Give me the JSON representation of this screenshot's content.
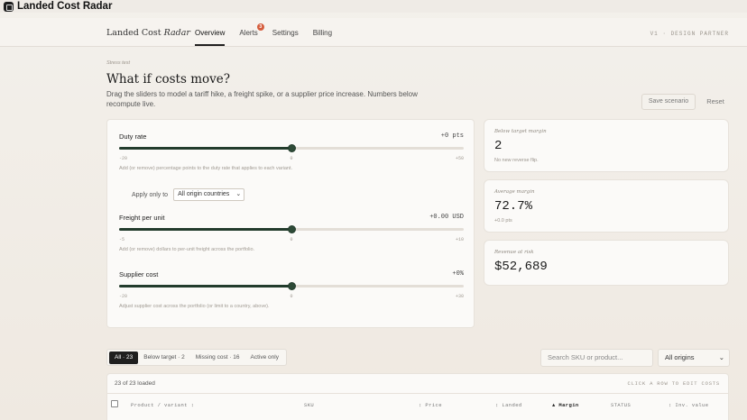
{
  "window": {
    "title": "Landed Cost Radar"
  },
  "header": {
    "brand_main": "Landed Cost",
    "brand_italic": "Radar",
    "tabs": [
      {
        "label": "Overview",
        "active": true
      },
      {
        "label": "Alerts",
        "badge": "3"
      },
      {
        "label": "Settings"
      },
      {
        "label": "Billing"
      }
    ],
    "right_text": "V1 · DESIGN PARTNER"
  },
  "intro": {
    "eyebrow": "Stress test",
    "title": "What if costs move?",
    "description": "Drag the sliders to model a tariff hike, a freight spike, or a supplier price increase. Numbers below recompute live."
  },
  "actions": {
    "save_label": "Save scenario",
    "reset_label": "Reset"
  },
  "sliders": {
    "duty": {
      "label": "Duty rate",
      "value": "+0 pts",
      "position": 0.5,
      "min": "-20",
      "mid": "0",
      "max": "+50",
      "help": "Add (or remove) percentage points to the duty rate that applies to each variant."
    },
    "apply": {
      "label": "Apply only to",
      "selected": "All origin countries"
    },
    "freight": {
      "label": "Freight per unit",
      "value": "+0.00 USD",
      "position": 0.5,
      "min": "-5",
      "mid": "0",
      "max": "+10",
      "help": "Add (or remove) dollars to per-unit freight across the portfolio."
    },
    "supplier": {
      "label": "Supplier cost",
      "value": "+0%",
      "position": 0.5,
      "min": "-20",
      "mid": "0",
      "max": "+30",
      "help": "Adjust supplier cost across the portfolio (or limit to a country, above)."
    }
  },
  "stats": {
    "below_target": {
      "label": "Below target margin",
      "value": "2",
      "sub": "No new reverse flip."
    },
    "avg_margin": {
      "label": "Average margin",
      "value": "72.7%",
      "sub": "+0.0 pts"
    },
    "revenue_risk": {
      "label": "Revenue at risk",
      "value": "$52,689"
    }
  },
  "filters": {
    "chips": [
      {
        "label": "All · 23",
        "active": true
      },
      {
        "label": "Below target · 2"
      },
      {
        "label": "Missing cost · 16"
      },
      {
        "label": "Active only"
      }
    ],
    "search_placeholder": "Search SKU or product...",
    "origin_select": "All origins"
  },
  "table": {
    "loaded": "23 of 23 loaded",
    "hint": "CLICK A ROW TO EDIT COSTS",
    "columns": [
      "Product / variant ↕",
      "SKU",
      "↕ Price",
      "↕ Landed",
      "▲ Margin",
      "STATUS",
      "↕ Inv. value"
    ]
  }
}
